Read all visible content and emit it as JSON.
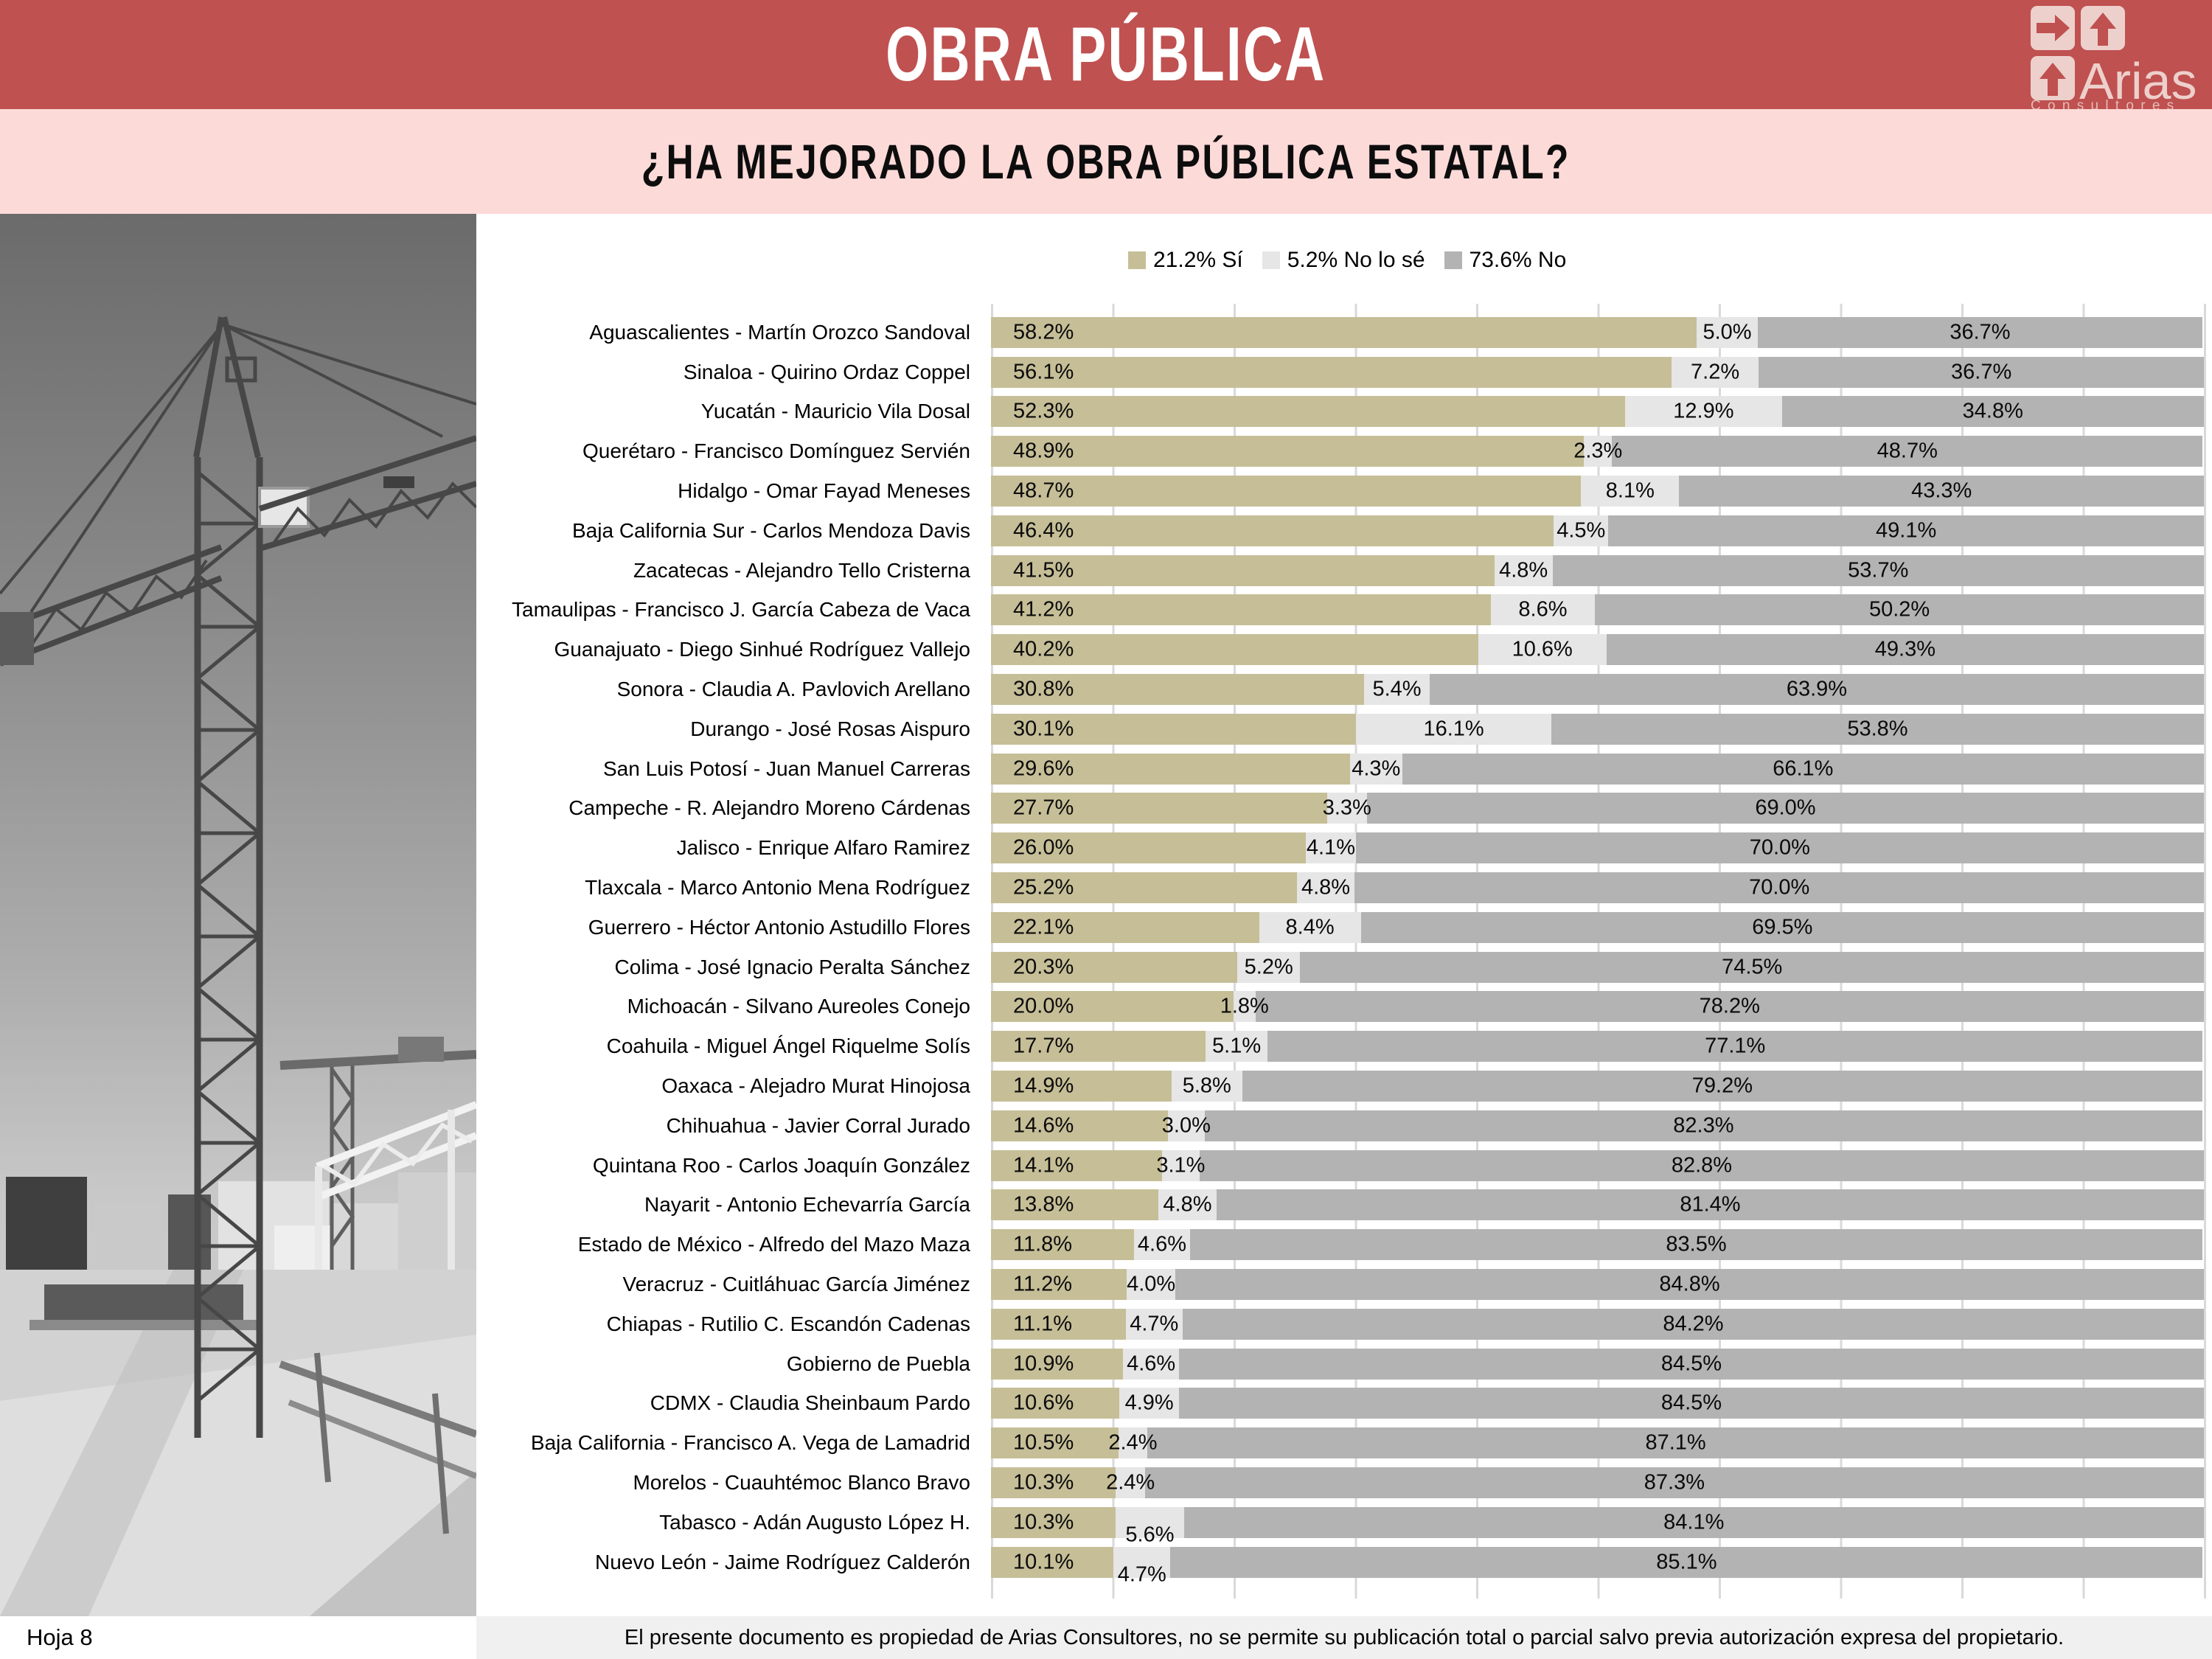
{
  "theme": {
    "banner_bg": "#bf5150",
    "subbanner_bg": "#fcdad8",
    "grid": "#d9d9d9",
    "footer_bg": "#f0f0f0"
  },
  "header": {
    "title": "OBRA PÚBLICA",
    "logo": {
      "brand": "Arias",
      "tagline": "C o n s u l t o r e s"
    }
  },
  "subheader": {
    "title": "¿HA MEJORADO LA OBRA PÚBLICA ESTATAL?"
  },
  "legend": {
    "items": [
      {
        "label": "21.2% Sí",
        "color": "#c6be97"
      },
      {
        "label": "5.2% No lo sé",
        "color": "#e6e6e6"
      },
      {
        "label": "73.6% No",
        "color": "#b3b3b3"
      }
    ]
  },
  "chart_data": {
    "type": "bar",
    "orientation": "horizontal",
    "stacked": true,
    "title": "¿HA MEJORADO LA OBRA PÚBLICA ESTATAL?",
    "xlim": [
      0,
      100
    ],
    "gridlines_every_percent": 10,
    "value_label_format": "one_decimal_percent",
    "overall": {
      "si_pct": 21.2,
      "no_lo_se_pct": 5.2,
      "no_pct": 73.6
    },
    "colors": [
      "#c6be97",
      "#e6e6e6",
      "#b3b3b3"
    ],
    "categories": [
      "Aguascalientes - Martín Orozco Sandoval",
      "Sinaloa - Quirino Ordaz Coppel",
      "Yucatán  - Mauricio Vila Dosal",
      "Querétaro - Francisco Domínguez Servién",
      "Hidalgo - Omar Fayad Meneses",
      "Baja California Sur - Carlos Mendoza Davis",
      "Zacatecas - Alejandro Tello Cristerna",
      "Tamaulipas - Francisco J. García Cabeza de Vaca",
      "Guanajuato - Diego Sinhué Rodríguez Vallejo",
      "Sonora - Claudia A. Pavlovich Arellano",
      "Durango - José Rosas Aispuro",
      "San Luis Potosí - Juan Manuel Carreras",
      "Campeche - R. Alejandro Moreno Cárdenas",
      "Jalisco - Enrique Alfaro Ramirez",
      "Tlaxcala - Marco Antonio Mena Rodríguez",
      "Guerrero - Héctor Antonio Astudillo Flores",
      "Colima - José Ignacio Peralta Sánchez",
      "Michoacán - Silvano Aureoles Conejo",
      "Coahuila - Miguel Ángel Riquelme Solís",
      "Oaxaca  - Alejadro Murat Hinojosa",
      "Chihuahua - Javier Corral Jurado",
      "Quintana Roo - Carlos Joaquín González",
      "Nayarit - Antonio Echevarría García",
      "Estado de México - Alfredo del Mazo Maza",
      "Veracruz - Cuitláhuac García Jiménez",
      "Chiapas - Rutilio C. Escandón Cadenas",
      "Gobierno de Puebla",
      "CDMX - Claudia Sheinbaum Pardo",
      "Baja California - Francisco A. Vega de Lamadrid",
      "Morelos - Cuauhtémoc Blanco Bravo",
      "Tabasco - Adán Augusto López H.",
      "Nuevo León  - Jaime Rodríguez Calderón"
    ],
    "series": [
      {
        "name": "Sí",
        "values": [
          58.2,
          56.1,
          52.3,
          48.9,
          48.7,
          46.4,
          41.5,
          41.2,
          40.2,
          30.8,
          30.1,
          29.6,
          27.7,
          26.0,
          25.2,
          22.1,
          20.3,
          20.0,
          17.7,
          14.9,
          14.6,
          14.1,
          13.8,
          11.8,
          11.2,
          11.1,
          10.9,
          10.6,
          10.5,
          10.3,
          10.3,
          10.1
        ]
      },
      {
        "name": "No lo sé",
        "values": [
          5.0,
          7.2,
          12.9,
          2.3,
          8.1,
          4.5,
          4.8,
          8.6,
          10.6,
          5.4,
          16.1,
          4.3,
          3.3,
          4.1,
          4.8,
          8.4,
          5.2,
          1.8,
          5.1,
          5.8,
          3.0,
          3.1,
          4.8,
          4.6,
          4.0,
          4.7,
          4.6,
          4.9,
          2.4,
          2.4,
          5.6,
          4.7
        ]
      },
      {
        "name": "No",
        "values": [
          36.7,
          36.7,
          34.8,
          48.7,
          43.3,
          49.1,
          53.7,
          50.2,
          49.3,
          63.9,
          53.8,
          66.1,
          69.0,
          70.0,
          70.0,
          69.5,
          74.5,
          78.2,
          77.1,
          79.2,
          82.3,
          82.8,
          81.4,
          83.5,
          84.8,
          84.2,
          84.5,
          84.5,
          87.1,
          87.3,
          84.1,
          85.1
        ]
      }
    ],
    "offset_mid_label_rows": [
      30,
      31
    ]
  },
  "footer": {
    "page": "Hoja 8",
    "notice": "El presente documento es propiedad de Arias Consultores, no se permite su publicación total o parcial salvo previa autorización expresa del propietario."
  }
}
